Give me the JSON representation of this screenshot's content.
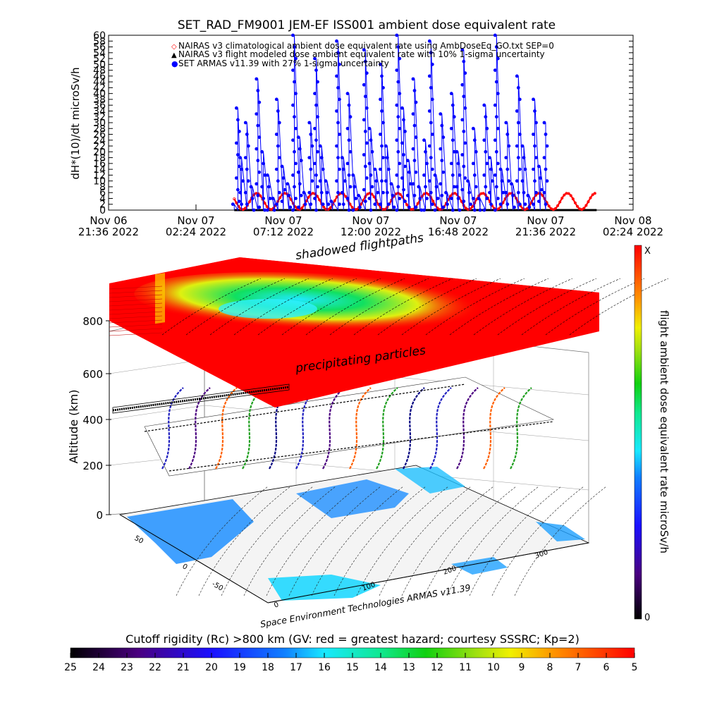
{
  "chart_data": [
    {
      "type": "line",
      "title": "SET_RAD_FM9001   JEM-EF ISS001 ambient dose equivalent rate",
      "ylabel": "dH*(10)/dt microSv/h",
      "ylim": [
        0,
        60
      ],
      "yticks": [
        0,
        2,
        4,
        6,
        8,
        10,
        12,
        14,
        16,
        18,
        20,
        22,
        24,
        26,
        28,
        30,
        32,
        34,
        36,
        38,
        40,
        42,
        44,
        46,
        48,
        50,
        52,
        54,
        56,
        58,
        60
      ],
      "xticks": [
        {
          "line1": "Nov 06",
          "line2": "21:36 2022"
        },
        {
          "line1": "Nov 07",
          "line2": "02:24 2022"
        },
        {
          "line1": "Nov 07",
          "line2": "07:12 2022"
        },
        {
          "line1": "Nov 07",
          "line2": "12:00 2022"
        },
        {
          "line1": "Nov 07",
          "line2": "16:48 2022"
        },
        {
          "line1": "Nov 07",
          "line2": "21:36 2022"
        },
        {
          "line1": "Nov 08",
          "line2": "02:24 2022"
        }
      ],
      "x_range_hours": [
        0,
        28.8
      ],
      "legend": [
        "NAIRAS v3 climatological ambient dose equivalent rate using AmbDoseEq_GO.txt SEP=0",
        "NAIRAS v3 flight modeled dose ambient equivalent rate with 10% 1-sigma uncertainty",
        "SET ARMAS v11.39 with 27% 1-sigma uncertainty"
      ],
      "legend_placement": "top-center",
      "series": [
        {
          "name": "NAIRAS v3 climatological ambient dose equivalent rate using AmbDoseEq_GO.txt SEP=0",
          "color": "#ff0000",
          "description_values": [
            0.5,
            6,
            0.5,
            6,
            0.5,
            6,
            0.5,
            6,
            0.5,
            6,
            0.5,
            6,
            0.5,
            6
          ]
        },
        {
          "name": "SET ARMAS v11.39 with 27% 1-sigma uncertainty",
          "color": "#0000ff",
          "hours": [
            6.9,
            7.1,
            7.3,
            7.6,
            7.9,
            8.2,
            8.5,
            8.8,
            9.1,
            9.3,
            9.6,
            9.9,
            10.2,
            10.5,
            10.8,
            11.1,
            11.4,
            11.7,
            12.0,
            12.3,
            12.6,
            12.9,
            13.2,
            13.5,
            13.8,
            14.1,
            14.4,
            14.7,
            15.0,
            15.3,
            15.6,
            15.9,
            16.2,
            16.5,
            16.8,
            17.1,
            17.4,
            17.7,
            18.0,
            18.3,
            18.6,
            18.9,
            19.2,
            19.5,
            19.8,
            20.1,
            20.4,
            20.7,
            21.0,
            21.3,
            21.6,
            21.9,
            22.2,
            22.5,
            22.8,
            23.1,
            23.4,
            23.7,
            24.0
          ],
          "values": [
            2,
            35,
            18,
            30,
            8,
            45,
            20,
            12,
            4,
            38,
            15,
            9,
            60,
            25,
            6,
            30,
            52,
            22,
            10,
            3,
            58,
            18,
            40,
            12,
            5,
            55,
            28,
            14,
            50,
            22,
            9,
            60,
            35,
            17,
            45,
            8,
            24,
            58,
            12,
            33,
            6,
            40,
            20,
            55,
            10,
            28,
            4,
            36,
            18,
            60,
            14,
            30,
            9,
            46,
            22,
            5,
            38,
            15,
            30
          ]
        }
      ]
    },
    {
      "type": "heatmap",
      "title_labels": [
        "shadowed flightpaths",
        "precipitating particles"
      ],
      "zlabel": "Altitude (km)",
      "zticks": [
        "0",
        "200",
        "400",
        "600",
        "800"
      ],
      "lat_ticks": [
        "50",
        "0",
        "-50"
      ],
      "lon_ticks": [
        "0",
        "100",
        "200",
        "300"
      ],
      "credit": "Space Environment Technologies ARMAS v11.39",
      "colorbar_right": {
        "label": "flight ambient dose equivalent rate microSv/h",
        "top": "X",
        "bottom": "0"
      }
    },
    {
      "type": "colorbar",
      "title": "Cutoff rigidity (Rc) >800 km (GV: red = greatest hazard; courtesy SSSRC; Kp=2)",
      "ticks": [
        "25",
        "24",
        "23",
        "22",
        "21",
        "20",
        "19",
        "18",
        "17",
        "16",
        "15",
        "14",
        "13",
        "12",
        "11",
        "10",
        "9",
        "8",
        "7",
        "6",
        "5"
      ]
    }
  ],
  "colors": {
    "series_red": "#ff0000",
    "series_blue": "#0000ff",
    "sea": "#1ea7ff",
    "land": "#f4f4f4"
  }
}
